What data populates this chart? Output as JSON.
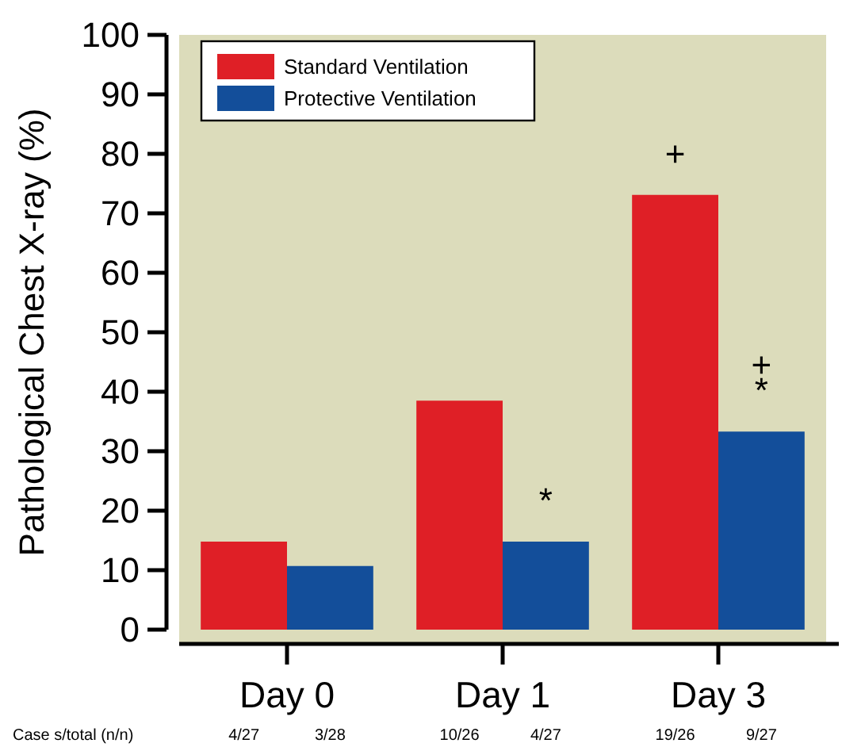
{
  "chart_data": {
    "type": "bar",
    "ylabel": "Pathological Chest X-ray (%)",
    "categories": [
      "Day 0",
      "Day 1",
      "Day 3"
    ],
    "ylim": [
      0,
      100
    ],
    "yticks": [
      0,
      10,
      20,
      30,
      40,
      50,
      60,
      70,
      80,
      90,
      100
    ],
    "grid": false,
    "legend": "top left",
    "series": [
      {
        "name": "Standard Ventilation",
        "color": "#df1f26",
        "values": [
          14.8,
          38.5,
          73.1
        ]
      },
      {
        "name": "Protective Ventilation",
        "color": "#134e9a",
        "values": [
          10.7,
          14.8,
          33.3
        ]
      }
    ],
    "annotations": [
      {
        "text": "+",
        "x": "Day 3",
        "y": 73.1
      },
      {
        "text": "*",
        "x": "Day 1",
        "y": 14.8
      },
      {
        "text": "+",
        "x": "Day 3",
        "y": 33.3
      },
      {
        "text": "*",
        "x": "Day 3",
        "y": 33.3
      },
      "Case s/total (n/n)",
      "4/27",
      "3/28",
      "10/26",
      "4/27",
      "19/26",
      "9/27"
    ]
  }
}
